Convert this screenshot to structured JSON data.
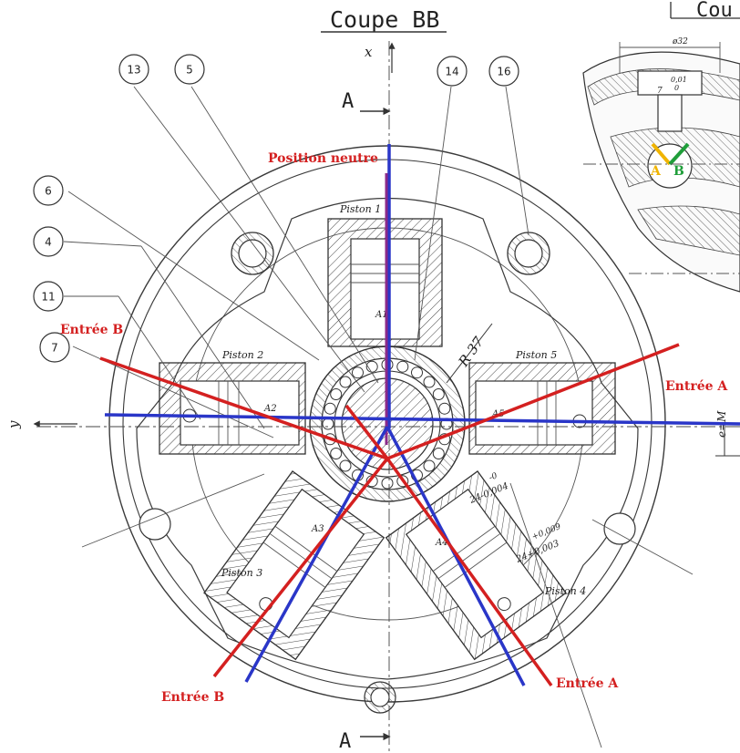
{
  "title": "Coupe BB",
  "title_cut": "Cou",
  "section_mark": "A",
  "axis_x": "x",
  "axis_y": "y",
  "eccentricity": "e=M",
  "radius_label": "R 37",
  "bubbles": [
    "13",
    "5",
    "14",
    "16",
    "6",
    "4",
    "11",
    "7"
  ],
  "pistons": {
    "p1": "Piston 1",
    "p2": "Piston 2",
    "p3": "Piston 3",
    "p4": "Piston 4",
    "p5": "Piston 5"
  },
  "piston_marks": [
    "A1",
    "A2",
    "A3",
    "A4",
    "A5"
  ],
  "tolerances": {
    "t1_top": "-0",
    "t1_main": "24-0,004",
    "t2_top": "+0,009",
    "t2_main": "24+0,003"
  },
  "detail": {
    "dim_top": "ø32",
    "dim_tol": "0,01",
    "dim_tol2": "0",
    "dim_small": "7",
    "port_a": "A",
    "port_b": "B"
  },
  "annotations": {
    "neutral": "Position neutre",
    "entree_b_upper": "Entrée B",
    "entree_a_right": "Entrée A",
    "entree_b_lower": "Entrée B",
    "entree_a_lower": "Entrée A"
  },
  "colors": {
    "red": "#d42020",
    "blue": "#2a36c8",
    "purple": "#8a2a8a",
    "yellow": "#f0b400",
    "green": "#1f9e3a"
  }
}
